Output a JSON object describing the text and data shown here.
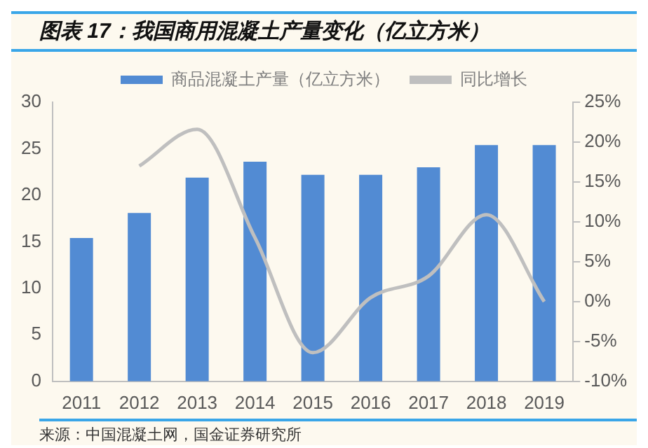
{
  "chart_data": {
    "type": "bar",
    "title": "图表 17：我国商用混凝土产量变化（亿立方米）",
    "categories": [
      "2011",
      "2012",
      "2013",
      "2014",
      "2015",
      "2016",
      "2017",
      "2018",
      "2019"
    ],
    "series": [
      {
        "name": "商品混凝土产量（亿立方米）",
        "color": "#528bd3",
        "values": [
          15.4,
          18.1,
          21.9,
          23.6,
          22.2,
          22.2,
          23,
          25.4,
          25.4
        ]
      },
      {
        "name": "同比增长",
        "type": "line",
        "axis": "y2",
        "color": "#bfbfbf",
        "values": [
          null,
          17,
          21.6,
          8,
          -6.4,
          0.5,
          3.2,
          10.9,
          0
        ]
      }
    ],
    "ylim": [
      0,
      30
    ],
    "yticks": [
      0,
      5,
      10,
      15,
      20,
      25,
      30
    ],
    "y2lim": [
      -10,
      25
    ],
    "y2ticks": [
      {
        "value": -10,
        "label": "-10%"
      },
      {
        "value": -5,
        "label": "-5%"
      },
      {
        "value": 0,
        "label": "0%"
      },
      {
        "value": 5,
        "label": "5%"
      },
      {
        "value": 10,
        "label": "10%"
      },
      {
        "value": 15,
        "label": "15%"
      },
      {
        "value": 20,
        "label": "20%"
      },
      {
        "value": 25,
        "label": "25%"
      }
    ],
    "legend": "top",
    "grid": false,
    "marker": "none",
    "annotations": [
      "来源：中国混凝土网，国金证券研究所"
    ]
  }
}
